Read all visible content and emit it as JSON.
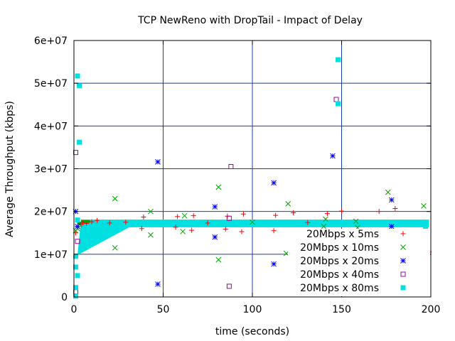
{
  "chart_data": {
    "type": "scatter",
    "title": "TCP NewReno with DropTail - Impact of Delay",
    "xlabel": "time (seconds)",
    "ylabel": "Average Throughput (kbps)",
    "xlim": [
      0,
      200
    ],
    "ylim": [
      0,
      60000000
    ],
    "x_ticks": [
      0,
      50,
      100,
      150,
      200
    ],
    "x_tick_labels": [
      "0",
      "50",
      "100",
      "150",
      "200"
    ],
    "y_ticks": [
      0,
      10000000,
      20000000,
      30000000,
      40000000,
      50000000,
      60000000
    ],
    "y_tick_labels": [
      "0",
      "1e+07",
      "2e+07",
      "3e+07",
      "4e+07",
      "5e+07",
      "6e+07"
    ],
    "grid": true,
    "legend_position": "bottom-right",
    "steady_throughput": 17200000,
    "series": [
      {
        "name": "20Mbps x 5ms",
        "marker": "plus",
        "color": "#ff0000",
        "points": [
          [
            1,
            15000000
          ],
          [
            2,
            16500000
          ],
          [
            3,
            17500000
          ],
          [
            4,
            17000000
          ],
          [
            5,
            17300000
          ],
          [
            7,
            17200000
          ],
          [
            10,
            17600000
          ],
          [
            13,
            17900000
          ],
          [
            20,
            17300000
          ],
          [
            29,
            17500000
          ],
          [
            38,
            16000000
          ],
          [
            39,
            18700000
          ],
          [
            57,
            16300000
          ],
          [
            58,
            18800000
          ],
          [
            66,
            15600000
          ],
          [
            67,
            19000000
          ],
          [
            75,
            17300000
          ],
          [
            85,
            15900000
          ],
          [
            86,
            18900000
          ],
          [
            94,
            15300000
          ],
          [
            95,
            19400000
          ],
          [
            112,
            15500000
          ],
          [
            113,
            19100000
          ],
          [
            122,
            15000000
          ],
          [
            123,
            19700000
          ],
          [
            131,
            17400000
          ],
          [
            141,
            15200000
          ],
          [
            142,
            19500000
          ],
          [
            150,
            20100000
          ],
          [
            160,
            14800000
          ],
          [
            170,
            14400000
          ],
          [
            171,
            20000000
          ],
          [
            178,
            13500000
          ],
          [
            180,
            20700000
          ],
          [
            188,
            13900000
          ],
          [
            189,
            15000000
          ],
          [
            198,
            11500000
          ],
          [
            199,
            10500000
          ]
        ]
      },
      {
        "name": "20Mbps x 10ms",
        "marker": "cross",
        "color": "#00a000",
        "points": [
          [
            1,
            15500000
          ],
          [
            2,
            16000000
          ],
          [
            3,
            17000000
          ],
          [
            23,
            11500000
          ],
          [
            23,
            23000000
          ],
          [
            43,
            14500000
          ],
          [
            43,
            20000000
          ],
          [
            61,
            15300000
          ],
          [
            62,
            19000000
          ],
          [
            81,
            8700000
          ],
          [
            81,
            25700000
          ],
          [
            100,
            17500000
          ],
          [
            119,
            10200000
          ],
          [
            120,
            21800000
          ],
          [
            140,
            16500000
          ],
          [
            141,
            18200000
          ],
          [
            158,
            17700000
          ],
          [
            159,
            16200000
          ],
          [
            176,
            10000000
          ],
          [
            176,
            24500000
          ],
          [
            183,
            11800000
          ],
          [
            196,
            13000000
          ],
          [
            196,
            21300000
          ]
        ]
      },
      {
        "name": "20Mbps x 20ms",
        "marker": "star",
        "color": "#0000ff",
        "points": [
          [
            1,
            20000000
          ],
          [
            2,
            16500000
          ],
          [
            47,
            3000000
          ],
          [
            47,
            31600000
          ],
          [
            79,
            14000000
          ],
          [
            79,
            21100000
          ],
          [
            112,
            7700000
          ],
          [
            112,
            26700000
          ],
          [
            145,
            1500000
          ],
          [
            145,
            33000000
          ],
          [
            177,
            12500000
          ],
          [
            178,
            16500000
          ],
          [
            178,
            22700000
          ],
          [
            197,
            8700000
          ]
        ]
      },
      {
        "name": "20Mbps x 40ms",
        "marker": "open-square",
        "color": "#a000a0",
        "points": [
          [
            1,
            33800000
          ],
          [
            1,
            1200000
          ],
          [
            2,
            13000000
          ],
          [
            87,
            2500000
          ],
          [
            87,
            18400000
          ],
          [
            88,
            30500000
          ],
          [
            147,
            46200000
          ],
          [
            148,
            5000000
          ],
          [
            198,
            5300000
          ]
        ]
      },
      {
        "name": "20Mbps x 80ms",
        "marker": "filled-square",
        "color": "#00e0e0",
        "points": [
          [
            1,
            9500000
          ],
          [
            1,
            7000000
          ],
          [
            1,
            2200000
          ],
          [
            1,
            200000
          ],
          [
            2,
            5000000
          ],
          [
            2,
            18000000
          ],
          [
            2,
            51700000
          ],
          [
            3,
            36200000
          ],
          [
            3,
            49400000
          ],
          [
            148,
            45200000
          ],
          [
            148,
            55500000
          ],
          [
            197,
            15700000
          ],
          [
            197,
            17200000
          ]
        ]
      }
    ]
  }
}
